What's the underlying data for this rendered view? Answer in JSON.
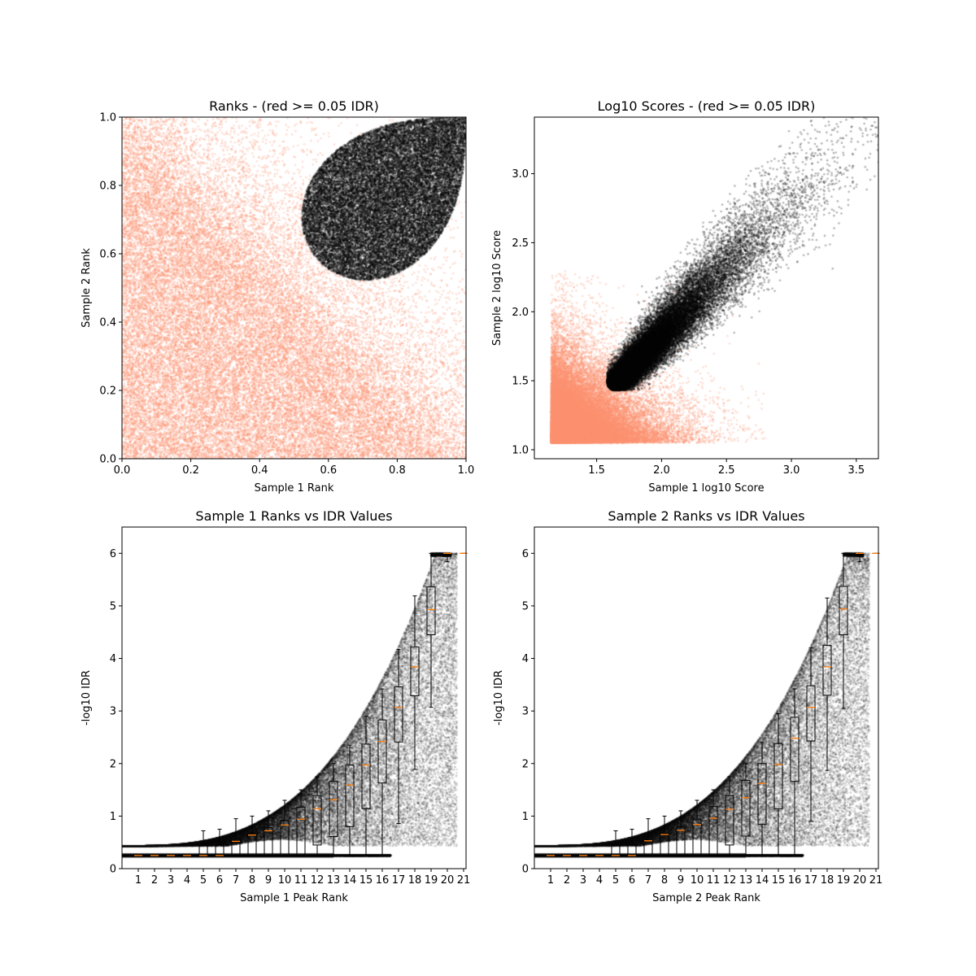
{
  "chart_data": [
    {
      "type": "scatter",
      "title": "Ranks - (red >= 0.05 IDR)",
      "xlabel": "Sample 1 Rank",
      "ylabel": "Sample 2 Rank",
      "xlim": [
        0,
        1
      ],
      "ylim": [
        0,
        1
      ],
      "xticks": [
        "0.0",
        "0.2",
        "0.4",
        "0.6",
        "0.8",
        "1.0"
      ],
      "xtick_values": [
        0,
        0.2,
        0.4,
        0.6,
        0.8,
        1.0
      ],
      "yticks": [
        "0.0",
        "0.2",
        "0.4",
        "0.6",
        "0.8",
        "1.0"
      ],
      "ytick_values": [
        0,
        0.2,
        0.4,
        0.6,
        0.8,
        1.0
      ],
      "colors": {
        "pass": "#000000",
        "fail": "#fc9272"
      },
      "grid": false
    },
    {
      "type": "scatter",
      "title": "Log10 Scores - (red >= 0.05 IDR)",
      "xlabel": "Sample 1 log10 Score",
      "ylabel": "Sample 2 log10 Score",
      "xlim": [
        1.02,
        3.67
      ],
      "ylim": [
        0.935,
        3.41
      ],
      "xticks": [
        "1.5",
        "2.0",
        "2.5",
        "3.0",
        "3.5"
      ],
      "xtick_values": [
        1.5,
        2.0,
        2.5,
        3.0,
        3.5
      ],
      "yticks": [
        "1.0",
        "1.5",
        "2.0",
        "2.5",
        "3.0"
      ],
      "ytick_values": [
        1.0,
        1.5,
        2.0,
        2.5,
        3.0
      ],
      "colors": {
        "pass": "#000000",
        "fail": "#fc9272"
      },
      "grid": false
    },
    {
      "type": "scatter+boxplot",
      "title": "Sample 1 Ranks vs IDR Values",
      "xlabel": "Sample 1 Peak Rank",
      "ylabel": "-log10 IDR",
      "xlim": [
        0,
        21.15
      ],
      "ylim": [
        0,
        6.5
      ],
      "xticks": [
        "1",
        "2",
        "3",
        "4",
        "5",
        "6",
        "7",
        "8",
        "9",
        "10",
        "11",
        "12",
        "13",
        "14",
        "15",
        "16",
        "17",
        "18",
        "19",
        "20",
        "21"
      ],
      "xtick_values": [
        1,
        2,
        3,
        4,
        5,
        6,
        7,
        8,
        9,
        10,
        11,
        12,
        13,
        14,
        15,
        16,
        17,
        18,
        19,
        20,
        21
      ],
      "yticks": [
        "0",
        "1",
        "2",
        "3",
        "4",
        "5",
        "6"
      ],
      "ytick_values": [
        0,
        1,
        2,
        3,
        4,
        5,
        6
      ],
      "median_color": "#ff7f0e",
      "boxes_q1_median_q3_whislo_whishi": [
        [
          0.25,
          0.25,
          0.25,
          0.25,
          0.25
        ],
        [
          0.25,
          0.25,
          0.25,
          0.25,
          0.25
        ],
        [
          0.25,
          0.25,
          0.25,
          0.25,
          0.25
        ],
        [
          0.25,
          0.25,
          0.25,
          0.25,
          0.25
        ],
        [
          0.25,
          0.25,
          0.45,
          0.25,
          0.72
        ],
        [
          0.25,
          0.25,
          0.45,
          0.25,
          0.75
        ],
        [
          0.25,
          0.52,
          0.53,
          0.25,
          0.95
        ],
        [
          0.25,
          0.64,
          0.66,
          0.25,
          1.0
        ],
        [
          0.25,
          0.72,
          0.78,
          0.25,
          1.1
        ],
        [
          0.25,
          0.83,
          0.92,
          0.25,
          1.3
        ],
        [
          0.25,
          0.94,
          1.17,
          0.25,
          1.5
        ],
        [
          0.45,
          1.14,
          1.39,
          0.25,
          1.75
        ],
        [
          0.61,
          1.31,
          1.66,
          0.25,
          2.0
        ],
        [
          0.8,
          1.59,
          1.97,
          0.25,
          2.35
        ],
        [
          1.14,
          1.97,
          2.37,
          0.25,
          2.9
        ],
        [
          1.63,
          2.42,
          2.83,
          0.25,
          3.42
        ],
        [
          2.41,
          3.07,
          3.46,
          0.86,
          4.17
        ],
        [
          3.29,
          3.84,
          4.22,
          1.89,
          5.19
        ],
        [
          4.45,
          4.93,
          5.36,
          3.07,
          6.0
        ],
        [
          5.94,
          6.0,
          6.0,
          5.84,
          6.0
        ],
        [
          6.0,
          6.0,
          6.0,
          6.0,
          6.0
        ]
      ]
    },
    {
      "type": "scatter+boxplot",
      "title": "Sample 2 Ranks vs IDR Values",
      "xlabel": "Sample 2 Peak Rank",
      "ylabel": "-log10 IDR",
      "xlim": [
        0,
        21.15
      ],
      "ylim": [
        0,
        6.5
      ],
      "xticks": [
        "1",
        "2",
        "3",
        "4",
        "5",
        "6",
        "7",
        "8",
        "9",
        "10",
        "11",
        "12",
        "13",
        "14",
        "15",
        "16",
        "17",
        "18",
        "19",
        "20",
        "21"
      ],
      "xtick_values": [
        1,
        2,
        3,
        4,
        5,
        6,
        7,
        8,
        9,
        10,
        11,
        12,
        13,
        14,
        15,
        16,
        17,
        18,
        19,
        20,
        21
      ],
      "yticks": [
        "0",
        "1",
        "2",
        "3",
        "4",
        "5",
        "6"
      ],
      "ytick_values": [
        0,
        1,
        2,
        3,
        4,
        5,
        6
      ],
      "median_color": "#ff7f0e",
      "boxes_q1_median_q3_whislo_whishi": [
        [
          0.25,
          0.25,
          0.25,
          0.25,
          0.25
        ],
        [
          0.25,
          0.25,
          0.25,
          0.25,
          0.25
        ],
        [
          0.25,
          0.25,
          0.25,
          0.25,
          0.25
        ],
        [
          0.25,
          0.25,
          0.25,
          0.25,
          0.25
        ],
        [
          0.25,
          0.25,
          0.45,
          0.25,
          0.72
        ],
        [
          0.25,
          0.25,
          0.45,
          0.25,
          0.75
        ],
        [
          0.25,
          0.53,
          0.54,
          0.25,
          0.95
        ],
        [
          0.25,
          0.65,
          0.67,
          0.25,
          1.0
        ],
        [
          0.25,
          0.73,
          0.79,
          0.25,
          1.1
        ],
        [
          0.25,
          0.84,
          0.93,
          0.25,
          1.3
        ],
        [
          0.25,
          0.96,
          1.18,
          0.25,
          1.5
        ],
        [
          0.45,
          1.13,
          1.39,
          0.25,
          1.75
        ],
        [
          0.62,
          1.35,
          1.68,
          0.25,
          2.0
        ],
        [
          0.84,
          1.62,
          2.0,
          0.25,
          2.4
        ],
        [
          1.14,
          1.98,
          2.38,
          0.25,
          2.95
        ],
        [
          1.66,
          2.48,
          2.88,
          0.25,
          3.42
        ],
        [
          2.43,
          3.07,
          3.48,
          0.9,
          4.2
        ],
        [
          3.3,
          3.84,
          4.25,
          1.87,
          5.15
        ],
        [
          4.45,
          4.94,
          5.37,
          3.05,
          6.0
        ],
        [
          5.94,
          6.0,
          6.0,
          5.84,
          6.0
        ],
        [
          6.0,
          6.0,
          6.0,
          6.0,
          6.0
        ]
      ]
    }
  ]
}
